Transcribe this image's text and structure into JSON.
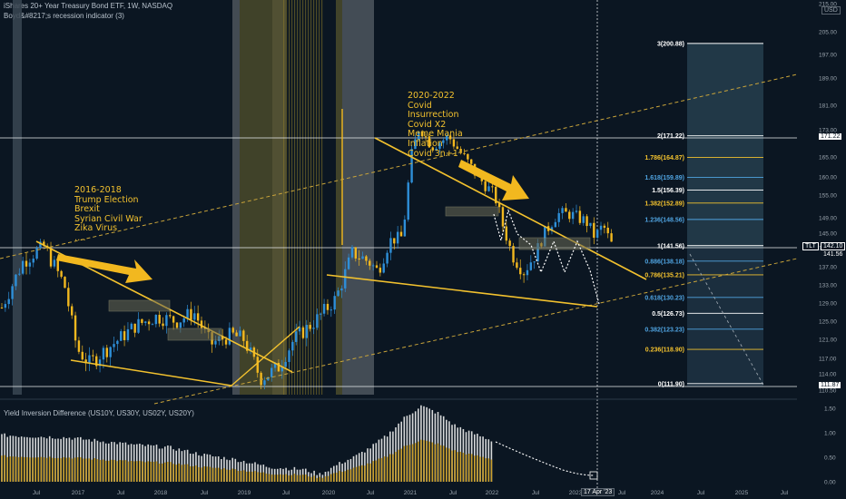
{
  "header": {
    "title": "iShares 20+ Year Treasury Bond ETF, 1W, NASDAQ",
    "indicator": "Boyd&#8217;s recession indicator (3)",
    "subpanel_title": "Yield Inversion Difference (US10Y, US30Y, US02Y, US20Y)",
    "currency": "USD"
  },
  "annotations": {
    "group1": [
      "2016-2018",
      "Trump Election",
      "Brexit",
      "Syrian Civil War",
      "Zika Virus",
      "…."
    ],
    "group2": [
      "2020-2022",
      "Covid",
      "Insurrection",
      "Covid X2",
      "Meme Mania",
      "Inflation",
      "Covid 3n+1"
    ]
  },
  "tags": {
    "ticker": "TLT",
    "ticker_price": "142.10",
    "ticker_sub": "141.56",
    "top": "171.22",
    "bottom": "111.87",
    "date": "17 Apr '23"
  },
  "colors": {
    "up": "#2e8fd8",
    "down": "#f2b81f",
    "line": "#f2c12e",
    "bg": "#0b1622"
  },
  "chart_data": {
    "type": "candlestick",
    "title": "iShares 20+ Year Treasury Bond ETF, 1W, NASDAQ",
    "x_ticks": [
      "Jul",
      "2017",
      "Jul",
      "2018",
      "Jul",
      "2019",
      "Jul",
      "2020",
      "Jul",
      "2021",
      "Jul",
      "2022",
      "Jul",
      "2023",
      "Apr",
      "Jul",
      "2024",
      "Jul",
      "2025",
      "Jul"
    ],
    "y_ticks": [
      215,
      205,
      197,
      189,
      181,
      173,
      165,
      160,
      155,
      149,
      145,
      141,
      137,
      133,
      129,
      125,
      121,
      117,
      114,
      110.5
    ],
    "ylim": [
      110.5,
      215
    ],
    "price_path": [
      [
        0,
        128
      ],
      [
        0.5,
        138
      ],
      [
        1,
        141.5
      ],
      [
        1.5,
        133
      ],
      [
        1.8,
        119
      ],
      [
        2.1,
        116
      ],
      [
        2.8,
        121
      ],
      [
        3.2,
        124
      ],
      [
        3.7,
        126
      ],
      [
        4.2,
        125
      ],
      [
        4.6,
        127
      ],
      [
        5.0,
        120
      ],
      [
        5.5,
        122
      ],
      [
        5.8,
        121
      ],
      [
        6.2,
        113
      ],
      [
        6.6,
        115
      ],
      [
        7.0,
        121
      ],
      [
        7.5,
        125
      ],
      [
        8.0,
        130
      ],
      [
        8.4,
        140
      ],
      [
        8.8,
        138
      ],
      [
        9.0,
        136
      ],
      [
        9.3,
        143
      ],
      [
        9.6,
        144
      ],
      [
        9.8,
        165
      ],
      [
        10.0,
        174
      ],
      [
        10.3,
        168
      ],
      [
        10.7,
        171
      ],
      [
        11.0,
        166
      ],
      [
        11.4,
        160
      ],
      [
        11.8,
        155
      ],
      [
        12.0,
        147
      ],
      [
        12.2,
        140
      ],
      [
        12.5,
        136
      ],
      [
        12.8,
        140
      ],
      [
        13.0,
        145
      ],
      [
        13.3,
        150
      ],
      [
        13.6,
        150
      ],
      [
        14.0,
        148
      ],
      [
        14.2,
        144
      ],
      [
        14.4,
        147
      ],
      [
        14.6,
        142
      ]
    ],
    "fib_levels": [
      {
        "ratio": "3",
        "value": 200.88
      },
      {
        "ratio": "2",
        "value": 171.22
      },
      {
        "ratio": "1.786",
        "value": 164.87
      },
      {
        "ratio": "1.618",
        "value": 159.89
      },
      {
        "ratio": "1.5",
        "value": 156.39
      },
      {
        "ratio": "1.382",
        "value": 152.89
      },
      {
        "ratio": "1.236",
        "value": 148.56
      },
      {
        "ratio": "1",
        "value": 141.56
      },
      {
        "ratio": "0.886",
        "value": 138.18
      },
      {
        "ratio": "0.786",
        "value": 135.21
      },
      {
        "ratio": "0.618",
        "value": 130.23
      },
      {
        "ratio": "0.5",
        "value": 126.73
      },
      {
        "ratio": "0.382",
        "value": 123.23
      },
      {
        "ratio": "0.236",
        "value": 118.9
      },
      {
        "ratio": "0",
        "value": 111.9
      }
    ],
    "subpanel": {
      "title": "Yield Inversion Difference (US10Y, US30Y, US02Y, US20Y)",
      "y_ticks": [
        1.5,
        1.0,
        0.5,
        0.0
      ],
      "ylim": [
        0,
        1.6
      ],
      "path": [
        [
          0,
          0.95
        ],
        [
          2,
          0.9
        ],
        [
          4,
          0.75
        ],
        [
          5,
          0.7
        ],
        [
          6,
          0.55
        ],
        [
          7,
          0.45
        ],
        [
          8,
          0.3
        ],
        [
          9,
          0.25
        ],
        [
          9.5,
          0.15
        ],
        [
          10,
          0.35
        ],
        [
          10.5,
          0.5
        ],
        [
          11,
          0.7
        ],
        [
          11.5,
          0.95
        ],
        [
          12,
          1.3
        ],
        [
          12.5,
          1.55
        ],
        [
          13,
          1.4
        ],
        [
          13.5,
          1.15
        ],
        [
          14,
          1.0
        ],
        [
          14.6,
          0.85
        ]
      ],
      "projection_end": 0.05
    }
  }
}
